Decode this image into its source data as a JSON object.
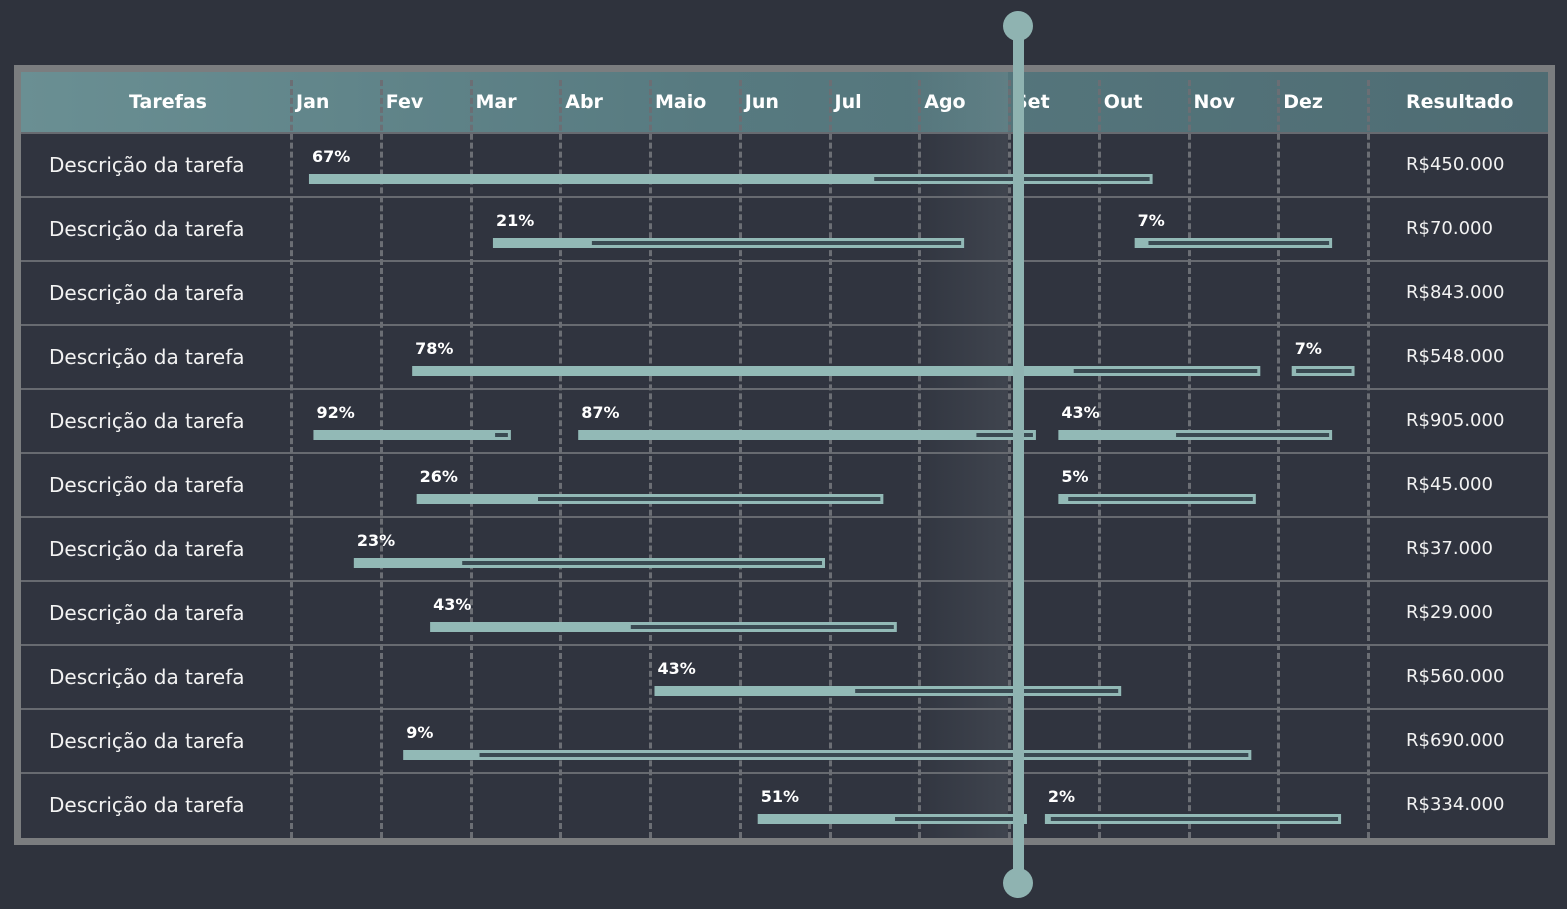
{
  "colors": {
    "bar": "#92b9b6",
    "bar_dark": "#3a4a52",
    "today": "#8fb3b1",
    "header": "#5f8388"
  },
  "chart_data": {
    "type": "gantt",
    "columns": {
      "task": "Tarefas",
      "result": "Resultado"
    },
    "months": [
      "Jan",
      "Fev",
      "Mar",
      "Abr",
      "Maio",
      "Jun",
      "Jul",
      "Ago",
      "Set",
      "Out",
      "Nov",
      "Dez"
    ],
    "today_month": 8.1,
    "rows": [
      {
        "label": "Descrição da tarefa",
        "result": "R$450.000",
        "bars": [
          {
            "start": 0.2,
            "end": 9.6,
            "progress": 67,
            "progress_label": "67%"
          }
        ]
      },
      {
        "label": "Descrição da tarefa",
        "result": "R$70.000",
        "bars": [
          {
            "start": 2.25,
            "end": 7.5,
            "progress": 21,
            "progress_label": "21%"
          },
          {
            "start": 9.4,
            "end": 11.6,
            "progress": 7,
            "progress_label": "7%"
          }
        ]
      },
      {
        "label": "Descrição da tarefa",
        "result": "R$843.000",
        "bars": []
      },
      {
        "label": "Descrição da tarefa",
        "result": "R$548.000",
        "bars": [
          {
            "start": 1.35,
            "end": 10.8,
            "progress": 78,
            "progress_label": "78%"
          },
          {
            "start": 11.15,
            "end": 11.85,
            "progress": 7,
            "progress_label": "7%"
          }
        ]
      },
      {
        "label": "Descrição da tarefa",
        "result": "R$905.000",
        "bars": [
          {
            "start": 0.25,
            "end": 2.45,
            "progress": 92,
            "progress_label": "92%"
          },
          {
            "start": 3.2,
            "end": 8.3,
            "progress": 87,
            "progress_label": "87%"
          },
          {
            "start": 8.55,
            "end": 11.6,
            "progress": 43,
            "progress_label": "43%"
          }
        ]
      },
      {
        "label": "Descrição da tarefa",
        "result": "R$45.000",
        "bars": [
          {
            "start": 1.4,
            "end": 6.6,
            "progress": 26,
            "progress_label": "26%"
          },
          {
            "start": 8.55,
            "end": 10.75,
            "progress": 5,
            "progress_label": "5%"
          }
        ]
      },
      {
        "label": "Descrição da tarefa",
        "result": "R$37.000",
        "bars": [
          {
            "start": 0.7,
            "end": 5.95,
            "progress": 23,
            "progress_label": "23%"
          }
        ]
      },
      {
        "label": "Descrição da tarefa",
        "result": "R$29.000",
        "bars": [
          {
            "start": 1.55,
            "end": 6.75,
            "progress": 43,
            "progress_label": "43%"
          }
        ]
      },
      {
        "label": "Descrição da tarefa",
        "result": "R$560.000",
        "bars": [
          {
            "start": 4.05,
            "end": 9.25,
            "progress": 43,
            "progress_label": "43%"
          }
        ]
      },
      {
        "label": "Descrição da tarefa",
        "result": "R$690.000",
        "bars": [
          {
            "start": 1.25,
            "end": 10.7,
            "progress": 9,
            "progress_label": "9%"
          }
        ]
      },
      {
        "label": "Descrição da tarefa",
        "result": "R$334.000",
        "bars": [
          {
            "start": 5.2,
            "end": 8.2,
            "progress": 51,
            "progress_label": "51%"
          },
          {
            "start": 8.4,
            "end": 11.7,
            "progress": 2,
            "progress_label": "2%"
          }
        ]
      }
    ]
  }
}
